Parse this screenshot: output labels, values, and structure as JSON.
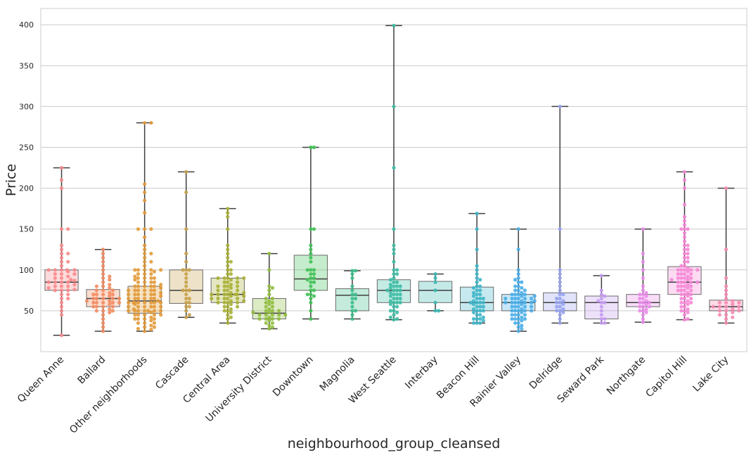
{
  "chart_data": {
    "type": "box-swarm",
    "title": "",
    "xlabel": "neighbourhood_group_cleansed",
    "ylabel": "Price",
    "ylim": [
      0,
      420
    ],
    "yticks": [
      50,
      100,
      150,
      200,
      250,
      300,
      350,
      400
    ],
    "grid": "horizontal",
    "categories": [
      "Queen Anne",
      "Ballard",
      "Other neighborhoods",
      "Cascade",
      "Central Area",
      "University District",
      "Downtown",
      "Magnolia",
      "West Seattle",
      "Interbay",
      "Beacon Hill",
      "Rainier Valley",
      "Delridge",
      "Seward Park",
      "Northgate",
      "Capitol Hill",
      "Lake City"
    ],
    "colors": [
      "#f9888b",
      "#f38b60",
      "#e29a38",
      "#c7a14b",
      "#a9b035",
      "#90bd3e",
      "#40c157",
      "#3dbd8b",
      "#3dbca4",
      "#3cb9b2",
      "#3fb5c8",
      "#4aaee8",
      "#97a2ef",
      "#c49bef",
      "#e98be9",
      "#f587d6",
      "#f68bb4"
    ],
    "boxes": [
      {
        "name": "Queen Anne",
        "whisker_low": 20,
        "q1": 75,
        "median": 85,
        "q3": 100,
        "whisker_high": 225
      },
      {
        "name": "Ballard",
        "whisker_low": 25,
        "q1": 55,
        "median": 65,
        "q3": 76,
        "whisker_high": 125
      },
      {
        "name": "Other neighborhoods",
        "whisker_low": 25,
        "q1": 47,
        "median": 62,
        "q3": 80,
        "whisker_high": 280
      },
      {
        "name": "Cascade",
        "whisker_low": 42,
        "q1": 59,
        "median": 75,
        "q3": 100,
        "whisker_high": 220
      },
      {
        "name": "Central Area",
        "whisker_low": 35,
        "q1": 60,
        "median": 70,
        "q3": 90,
        "whisker_high": 175
      },
      {
        "name": "University District",
        "whisker_low": 28,
        "q1": 40,
        "median": 47,
        "q3": 65,
        "whisker_high": 120
      },
      {
        "name": "Downtown",
        "whisker_low": 40,
        "q1": 75,
        "median": 89,
        "q3": 118,
        "whisker_high": 250
      },
      {
        "name": "Magnolia",
        "whisker_low": 40,
        "q1": 50,
        "median": 69,
        "q3": 77,
        "whisker_high": 99
      },
      {
        "name": "West Seattle",
        "whisker_low": 39,
        "q1": 60,
        "median": 75,
        "q3": 88,
        "whisker_high": 399
      },
      {
        "name": "Interbay",
        "whisker_low": 50,
        "q1": 60,
        "median": 75,
        "q3": 86,
        "whisker_high": 95
      },
      {
        "name": "Beacon Hill",
        "whisker_low": 35,
        "q1": 50,
        "median": 60,
        "q3": 79,
        "whisker_high": 169
      },
      {
        "name": "Rainier Valley",
        "whisker_low": 25,
        "q1": 50,
        "median": 60,
        "q3": 70,
        "whisker_high": 150
      },
      {
        "name": "Delridge",
        "whisker_low": 35,
        "q1": 50,
        "median": 60,
        "q3": 72,
        "whisker_high": 300
      },
      {
        "name": "Seward Park",
        "whisker_low": 35,
        "q1": 40,
        "median": 60,
        "q3": 68,
        "whisker_high": 93
      },
      {
        "name": "Northgate",
        "whisker_low": 36,
        "q1": 55,
        "median": 60,
        "q3": 70,
        "whisker_high": 150
      },
      {
        "name": "Capitol Hill",
        "whisker_low": 39,
        "q1": 70,
        "median": 85,
        "q3": 104,
        "whisker_high": 220
      },
      {
        "name": "Lake City",
        "whisker_low": 35,
        "q1": 50,
        "median": 55,
        "q3": 63,
        "whisker_high": 200
      }
    ],
    "points": [
      [
        20,
        45,
        50,
        55,
        60,
        65,
        65,
        70,
        70,
        75,
        75,
        75,
        76,
        78,
        80,
        80,
        80,
        82,
        85,
        85,
        85,
        85,
        87,
        88,
        90,
        90,
        92,
        95,
        95,
        95,
        98,
        100,
        100,
        100,
        100,
        100,
        105,
        110,
        110,
        115,
        120,
        120,
        125,
        130,
        150,
        150,
        200,
        210,
        225
      ],
      [
        25,
        30,
        35,
        40,
        45,
        48,
        50,
        50,
        50,
        52,
        55,
        55,
        55,
        55,
        58,
        60,
        60,
        60,
        60,
        60,
        62,
        62,
        65,
        65,
        65,
        65,
        65,
        68,
        70,
        70,
        70,
        70,
        72,
        75,
        75,
        75,
        78,
        80,
        80,
        82,
        85,
        88,
        90,
        92,
        95,
        100,
        105,
        110,
        115,
        120,
        125
      ],
      [
        25,
        27,
        28,
        30,
        30,
        32,
        35,
        35,
        35,
        38,
        40,
        40,
        40,
        40,
        42,
        45,
        45,
        45,
        45,
        45,
        48,
        50,
        50,
        50,
        50,
        50,
        50,
        50,
        52,
        55,
        55,
        55,
        55,
        55,
        55,
        58,
        60,
        60,
        60,
        60,
        60,
        60,
        60,
        60,
        62,
        65,
        65,
        65,
        65,
        65,
        65,
        68,
        70,
        70,
        70,
        70,
        70,
        70,
        72,
        75,
        75,
        75,
        75,
        75,
        75,
        78,
        80,
        80,
        80,
        80,
        80,
        82,
        85,
        85,
        85,
        85,
        88,
        90,
        90,
        90,
        90,
        92,
        95,
        95,
        95,
        98,
        100,
        100,
        100,
        100,
        100,
        105,
        110,
        110,
        115,
        120,
        120,
        125,
        130,
        140,
        150,
        150,
        150,
        170,
        185,
        195,
        205,
        280,
        280
      ],
      [
        42,
        45,
        50,
        55,
        55,
        60,
        60,
        65,
        65,
        70,
        75,
        75,
        75,
        80,
        85,
        90,
        95,
        100,
        100,
        100,
        110,
        120,
        150,
        195,
        220
      ],
      [
        35,
        40,
        42,
        45,
        48,
        50,
        50,
        52,
        55,
        55,
        55,
        58,
        60,
        60,
        60,
        60,
        62,
        62,
        65,
        65,
        65,
        65,
        65,
        68,
        68,
        70,
        70,
        70,
        70,
        70,
        70,
        72,
        72,
        75,
        75,
        75,
        75,
        78,
        80,
        80,
        80,
        80,
        82,
        85,
        85,
        85,
        88,
        90,
        90,
        90,
        90,
        90,
        95,
        95,
        100,
        100,
        105,
        110,
        110,
        115,
        120,
        125,
        130,
        150,
        165,
        170,
        175
      ],
      [
        28,
        30,
        32,
        35,
        35,
        38,
        40,
        40,
        40,
        40,
        42,
        45,
        45,
        45,
        45,
        45,
        48,
        48,
        50,
        50,
        50,
        52,
        55,
        55,
        58,
        60,
        60,
        62,
        65,
        65,
        70,
        75,
        78,
        80,
        100,
        120
      ],
      [
        40,
        50,
        60,
        65,
        68,
        70,
        70,
        75,
        75,
        80,
        85,
        85,
        88,
        90,
        90,
        95,
        95,
        100,
        100,
        100,
        110,
        115,
        120,
        125,
        130,
        150,
        150,
        250,
        250
      ],
      [
        40,
        45,
        50,
        50,
        55,
        60,
        65,
        65,
        70,
        70,
        75,
        80,
        90,
        95,
        99,
        99
      ],
      [
        39,
        40,
        42,
        45,
        48,
        50,
        50,
        55,
        55,
        58,
        60,
        60,
        60,
        62,
        65,
        65,
        65,
        68,
        70,
        70,
        70,
        72,
        75,
        75,
        75,
        75,
        78,
        80,
        80,
        80,
        82,
        85,
        85,
        88,
        90,
        95,
        95,
        100,
        100,
        110,
        120,
        125,
        130,
        150,
        225,
        300,
        399
      ],
      [
        50,
        50,
        60,
        75,
        85,
        90,
        95
      ],
      [
        35,
        35,
        35,
        38,
        40,
        40,
        40,
        42,
        45,
        45,
        48,
        50,
        50,
        50,
        52,
        55,
        55,
        55,
        58,
        60,
        60,
        60,
        60,
        62,
        65,
        65,
        65,
        68,
        70,
        70,
        72,
        75,
        75,
        78,
        80,
        80,
        85,
        88,
        90,
        95,
        100,
        105,
        125,
        150,
        169
      ],
      [
        25,
        28,
        30,
        32,
        35,
        35,
        38,
        40,
        40,
        40,
        40,
        42,
        45,
        45,
        45,
        45,
        48,
        50,
        50,
        50,
        50,
        50,
        52,
        55,
        55,
        55,
        55,
        55,
        58,
        60,
        60,
        60,
        60,
        60,
        60,
        62,
        62,
        65,
        65,
        65,
        65,
        65,
        65,
        68,
        68,
        70,
        70,
        70,
        70,
        72,
        75,
        75,
        75,
        78,
        80,
        80,
        85,
        85,
        88,
        90,
        95,
        100,
        125,
        150
      ],
      [
        35,
        40,
        45,
        48,
        50,
        50,
        52,
        55,
        55,
        58,
        60,
        60,
        62,
        65,
        65,
        70,
        70,
        75,
        80,
        85,
        90,
        95,
        100,
        150,
        300
      ],
      [
        35,
        35,
        40,
        40,
        45,
        50,
        55,
        60,
        60,
        62,
        65,
        68,
        70,
        75,
        93
      ],
      [
        36,
        40,
        45,
        48,
        50,
        50,
        52,
        55,
        55,
        55,
        58,
        60,
        60,
        60,
        62,
        65,
        65,
        68,
        70,
        70,
        72,
        75,
        80,
        90,
        100,
        110,
        120,
        150
      ],
      [
        39,
        40,
        45,
        48,
        50,
        50,
        52,
        55,
        55,
        58,
        60,
        60,
        60,
        62,
        65,
        65,
        65,
        68,
        70,
        70,
        70,
        72,
        75,
        75,
        75,
        75,
        78,
        80,
        80,
        80,
        80,
        82,
        85,
        85,
        85,
        85,
        85,
        88,
        88,
        90,
        90,
        90,
        90,
        92,
        95,
        95,
        95,
        95,
        98,
        100,
        100,
        100,
        100,
        100,
        102,
        105,
        105,
        110,
        110,
        115,
        115,
        120,
        120,
        125,
        125,
        130,
        130,
        135,
        140,
        145,
        150,
        150,
        150,
        155,
        160,
        165,
        180,
        200,
        210,
        220
      ],
      [
        35,
        40,
        42,
        45,
        45,
        48,
        50,
        50,
        50,
        52,
        55,
        55,
        55,
        55,
        58,
        60,
        60,
        60,
        62,
        65,
        70,
        75,
        80,
        90,
        125,
        200
      ]
    ]
  }
}
